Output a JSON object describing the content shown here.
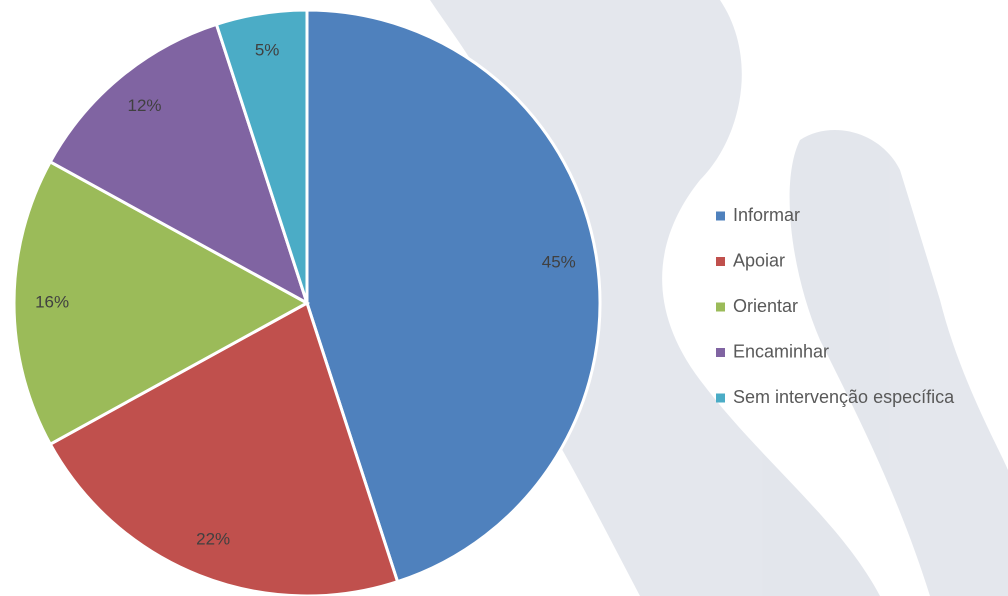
{
  "chart_data": {
    "type": "pie",
    "categories": [
      "Informar",
      "Apoiar",
      "Orientar",
      "Encaminhar",
      "Sem intervenção específica"
    ],
    "values": [
      45,
      22,
      16,
      12,
      5
    ],
    "value_labels": [
      "45%",
      "22%",
      "16%",
      "12%",
      "5%"
    ],
    "colors": [
      "#4f81bd",
      "#c0504d",
      "#9bbb59",
      "#8064a2",
      "#4bacc6"
    ],
    "legend": "right"
  }
}
